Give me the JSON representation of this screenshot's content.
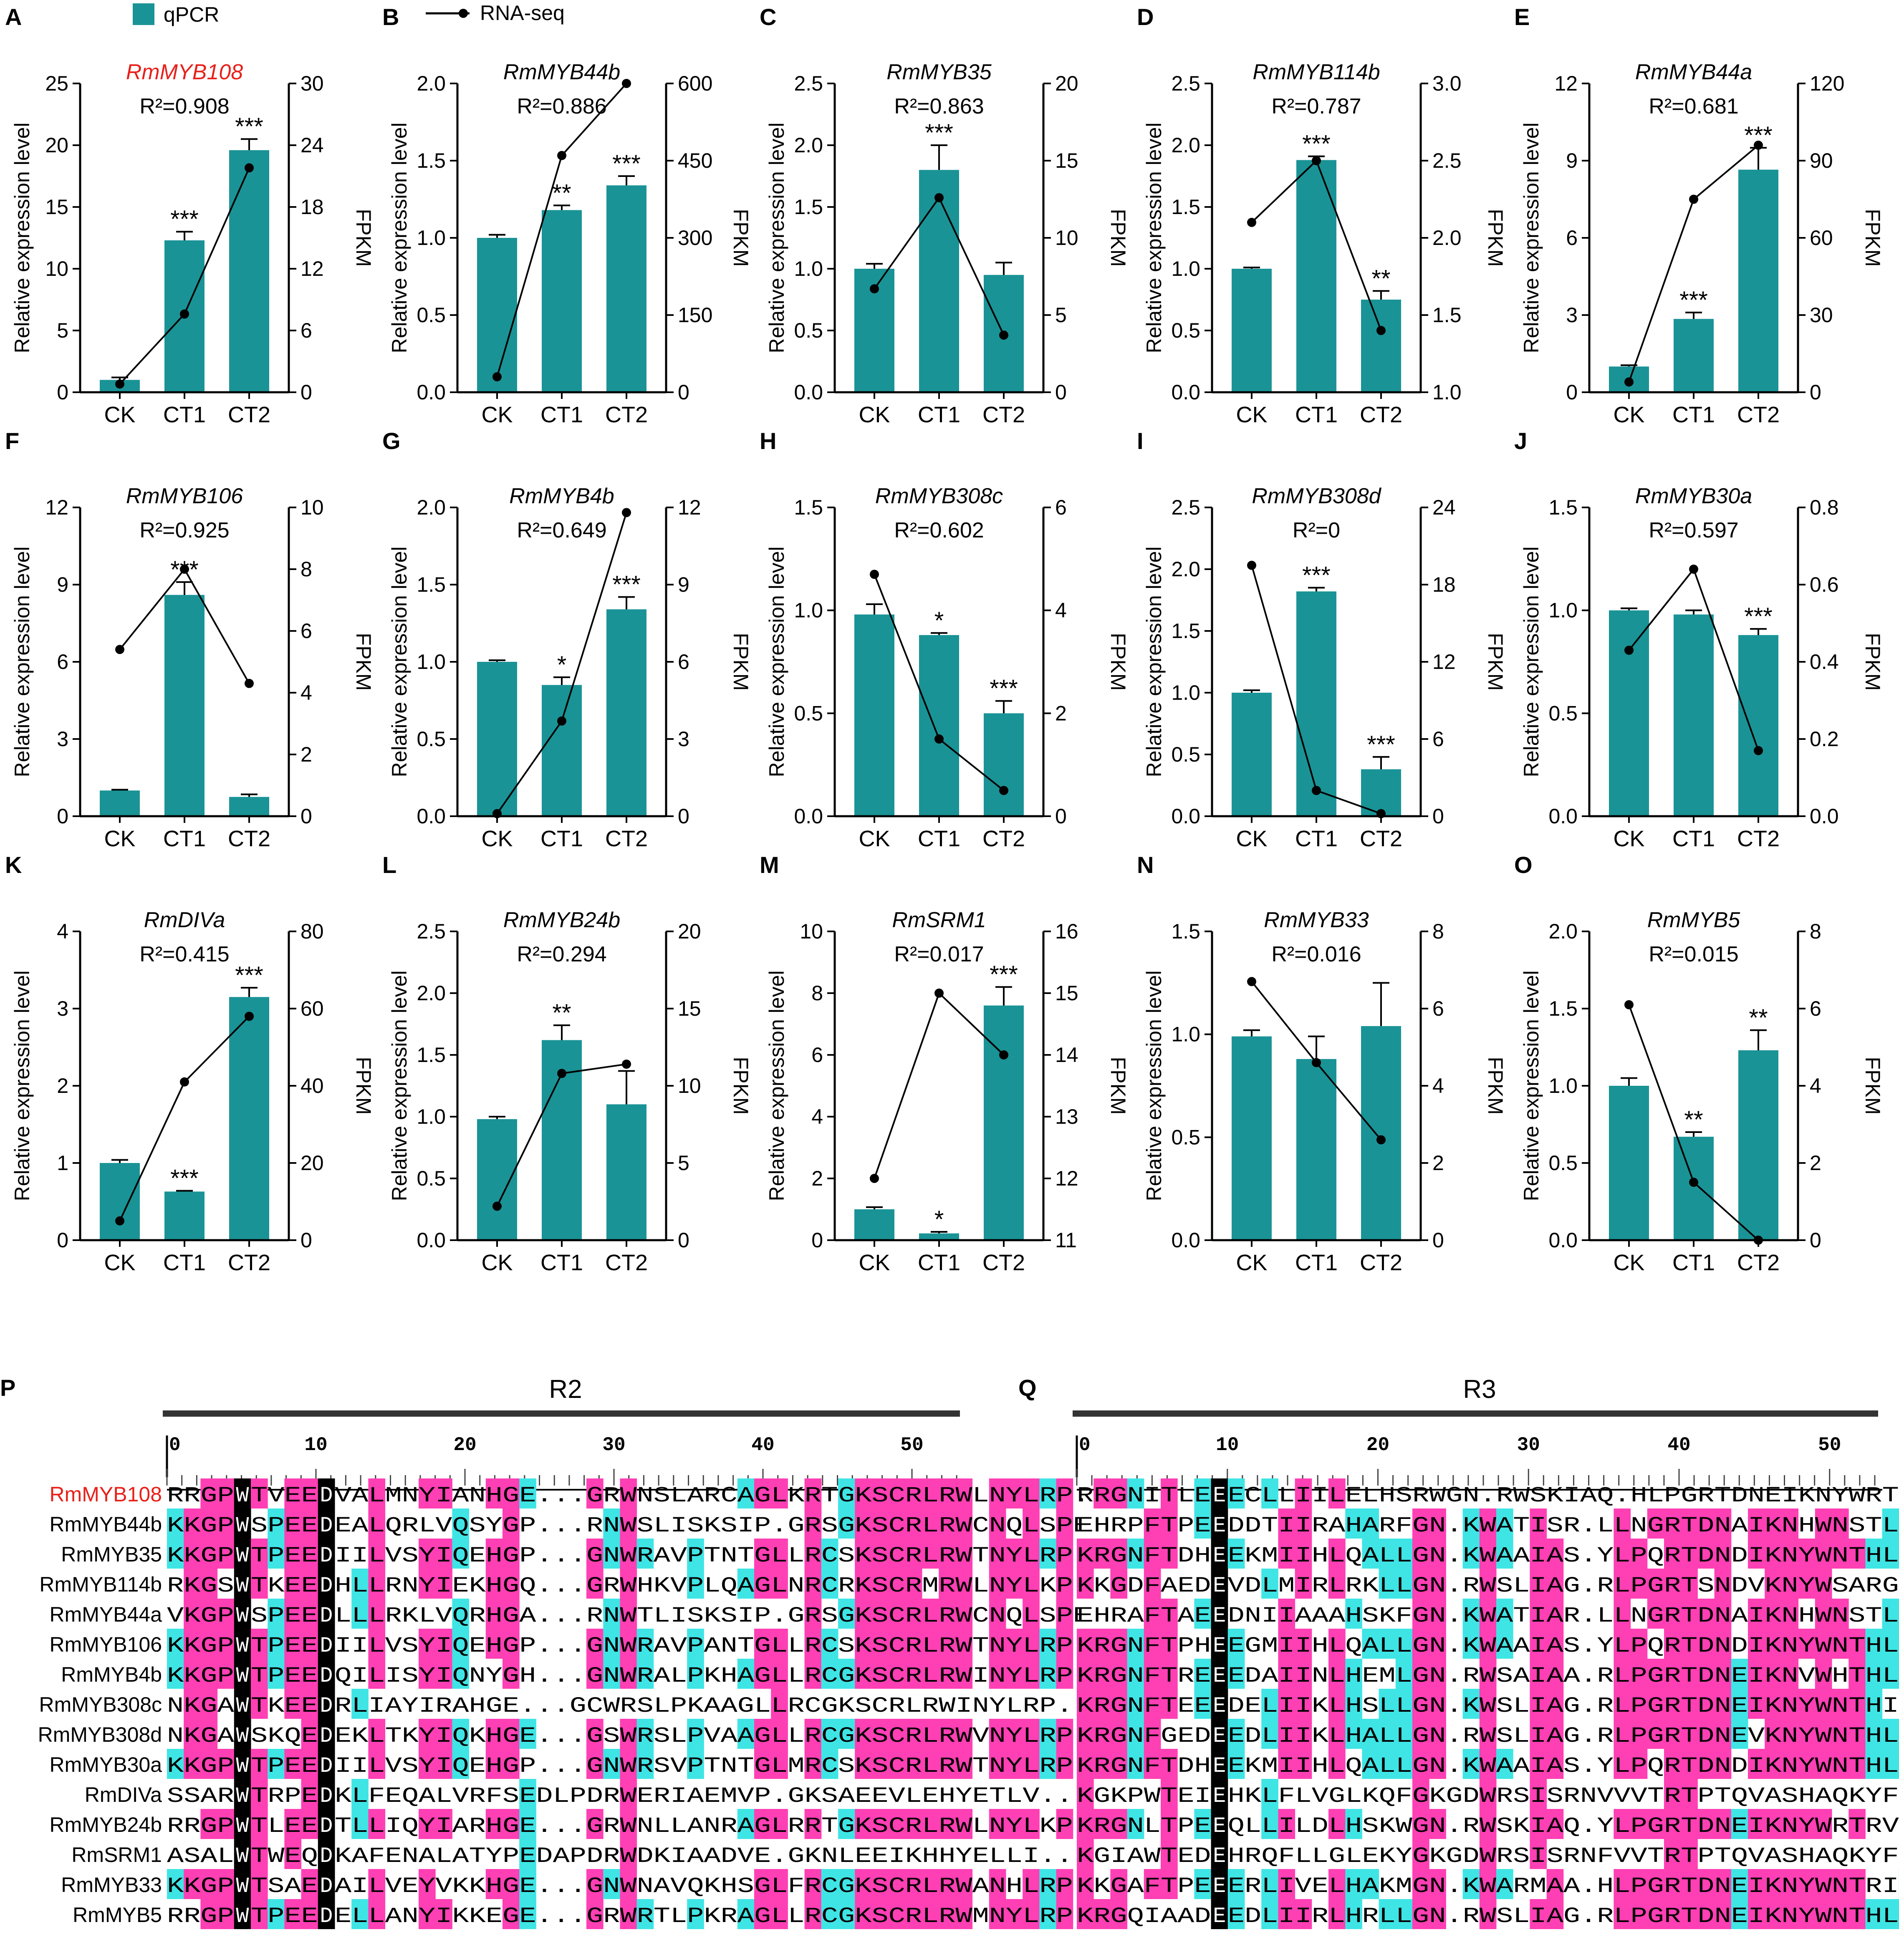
{
  "legend": {
    "qpcr_label": "qPCR",
    "rnaseq_label": "RNA-seq"
  },
  "axis_text": {
    "ylabel_left": "Relative expression level",
    "ylabel_right": "FPKM"
  },
  "chart_data": [
    {
      "type": "bar",
      "panel": "A",
      "title": "RmMYB108",
      "title_color": "#e8201a",
      "r2": "R²=0.908",
      "categories": [
        "CK",
        "CT1",
        "CT2"
      ],
      "bar_values": [
        1.0,
        12.3,
        19.6
      ],
      "bar_err": [
        0.2,
        0.7,
        0.9
      ],
      "sig": [
        "",
        "***",
        "***"
      ],
      "line_values": [
        0.8,
        7.6,
        21.8
      ],
      "ylim_left": [
        0,
        25
      ],
      "yticks_left": [
        0,
        5,
        10,
        15,
        20,
        25
      ],
      "ylim_right": [
        0,
        30
      ],
      "yticks_right": [
        0,
        6,
        12,
        18,
        24,
        30
      ]
    },
    {
      "type": "bar",
      "panel": "B",
      "title": "RmMYB44b",
      "r2": "R²=0.886",
      "categories": [
        "CK",
        "CT1",
        "CT2"
      ],
      "bar_values": [
        1.0,
        1.18,
        1.34
      ],
      "bar_err": [
        0.02,
        0.03,
        0.06
      ],
      "sig": [
        "",
        "**",
        "***"
      ],
      "line_values": [
        30,
        460,
        600
      ],
      "ylim_left": [
        0,
        2.0
      ],
      "yticks_left": [
        0.0,
        0.5,
        1.0,
        1.5,
        2.0
      ],
      "ylim_right": [
        0,
        600
      ],
      "yticks_right": [
        0,
        150,
        300,
        450,
        600
      ]
    },
    {
      "type": "bar",
      "panel": "C",
      "title": "RmMYB35",
      "r2": "R²=0.863",
      "categories": [
        "CK",
        "CT1",
        "CT2"
      ],
      "bar_values": [
        1.0,
        1.8,
        0.95
      ],
      "bar_err": [
        0.04,
        0.2,
        0.1
      ],
      "sig": [
        "",
        "***",
        ""
      ],
      "line_values": [
        6.7,
        12.6,
        3.7
      ],
      "ylim_left": [
        0,
        2.5
      ],
      "yticks_left": [
        0.0,
        0.5,
        1.0,
        1.5,
        2.0,
        2.5
      ],
      "ylim_right": [
        0,
        20
      ],
      "yticks_right": [
        0,
        5,
        10,
        15,
        20
      ]
    },
    {
      "type": "bar",
      "panel": "D",
      "title": "RmMYB114b",
      "r2": "R²=0.787",
      "categories": [
        "CK",
        "CT1",
        "CT2"
      ],
      "bar_values": [
        1.0,
        1.88,
        0.75
      ],
      "bar_err": [
        0.01,
        0.03,
        0.07
      ],
      "sig": [
        "",
        "***",
        "**"
      ],
      "line_values": [
        2.1,
        2.5,
        1.4
      ],
      "ylim_left": [
        0,
        2.5
      ],
      "yticks_left": [
        0.0,
        0.5,
        1.0,
        1.5,
        2.0,
        2.5
      ],
      "ylim_right": [
        1.0,
        3.0
      ],
      "yticks_right": [
        1.0,
        1.5,
        2.0,
        2.5,
        3.0
      ]
    },
    {
      "type": "bar",
      "panel": "E",
      "title": "RmMYB44a",
      "r2": "R²=0.681",
      "categories": [
        "CK",
        "CT1",
        "CT2"
      ],
      "bar_values": [
        1.0,
        2.85,
        8.65
      ],
      "bar_err": [
        0.05,
        0.25,
        0.85
      ],
      "sig": [
        "",
        "***",
        "***"
      ],
      "line_values": [
        4,
        75,
        96
      ],
      "ylim_left": [
        0,
        12
      ],
      "yticks_left": [
        0,
        3,
        6,
        9,
        12
      ],
      "ylim_right": [
        0,
        120
      ],
      "yticks_right": [
        0,
        30,
        60,
        90,
        120
      ]
    },
    {
      "type": "bar",
      "panel": "F",
      "title": "RmMYB106",
      "r2": "R²=0.925",
      "categories": [
        "CK",
        "CT1",
        "CT2"
      ],
      "bar_values": [
        1.0,
        8.6,
        0.75
      ],
      "bar_err": [
        0.03,
        0.5,
        0.1
      ],
      "sig": [
        "",
        "***",
        ""
      ],
      "line_values": [
        5.4,
        8.0,
        4.3
      ],
      "ylim_left": [
        0,
        12
      ],
      "yticks_left": [
        0,
        3,
        6,
        9,
        12
      ],
      "ylim_right": [
        0,
        10
      ],
      "yticks_right": [
        0,
        2,
        4,
        6,
        8,
        10
      ]
    },
    {
      "type": "bar",
      "panel": "G",
      "title": "RmMYB4b",
      "r2": "R²=0.649",
      "categories": [
        "CK",
        "CT1",
        "CT2"
      ],
      "bar_values": [
        1.0,
        0.85,
        1.34
      ],
      "bar_err": [
        0.01,
        0.05,
        0.08
      ],
      "sig": [
        "",
        "*",
        "***"
      ],
      "line_values": [
        0.1,
        3.7,
        11.8
      ],
      "ylim_left": [
        0,
        2.0
      ],
      "yticks_left": [
        0.0,
        0.5,
        1.0,
        1.5,
        2.0
      ],
      "ylim_right": [
        0,
        12
      ],
      "yticks_right": [
        0,
        3,
        6,
        9,
        12
      ]
    },
    {
      "type": "bar",
      "panel": "H",
      "title": "RmMYB308c",
      "r2": "R²=0.602",
      "categories": [
        "CK",
        "CT1",
        "CT2"
      ],
      "bar_values": [
        0.98,
        0.88,
        0.5
      ],
      "bar_err": [
        0.05,
        0.01,
        0.06
      ],
      "sig": [
        "",
        "*",
        "***"
      ],
      "line_values": [
        4.7,
        1.5,
        0.5
      ],
      "ylim_left": [
        0,
        1.5
      ],
      "yticks_left": [
        0.0,
        0.5,
        1.0,
        1.5
      ],
      "ylim_right": [
        0,
        6
      ],
      "yticks_right": [
        0,
        2,
        4,
        6
      ]
    },
    {
      "type": "bar",
      "panel": "I",
      "title": "RmMYB308d",
      "r2": "R²=0",
      "categories": [
        "CK",
        "CT1",
        "CT2"
      ],
      "bar_values": [
        1.0,
        1.82,
        0.38
      ],
      "bar_err": [
        0.02,
        0.03,
        0.1
      ],
      "sig": [
        "",
        "***",
        "***"
      ],
      "line_values": [
        19.5,
        2.0,
        0.2
      ],
      "ylim_left": [
        0,
        2.5
      ],
      "yticks_left": [
        0.0,
        0.5,
        1.0,
        1.5,
        2.0,
        2.5
      ],
      "ylim_right": [
        0,
        24
      ],
      "yticks_right": [
        0,
        6,
        12,
        18,
        24
      ]
    },
    {
      "type": "bar",
      "panel": "J",
      "title": "RmMYB30a",
      "r2": "R²=0.597",
      "categories": [
        "CK",
        "CT1",
        "CT2"
      ],
      "bar_values": [
        1.0,
        0.98,
        0.88
      ],
      "bar_err": [
        0.01,
        0.02,
        0.03
      ],
      "sig": [
        "",
        "",
        "***"
      ],
      "line_values": [
        0.43,
        0.64,
        0.17
      ],
      "ylim_left": [
        0,
        1.5
      ],
      "yticks_left": [
        0.0,
        0.5,
        1.0,
        1.5
      ],
      "ylim_right": [
        0,
        0.8
      ],
      "yticks_right": [
        0.0,
        0.2,
        0.4,
        0.6,
        0.8
      ]
    },
    {
      "type": "bar",
      "panel": "K",
      "title": "RmDIVa",
      "r2": "R²=0.415",
      "categories": [
        "CK",
        "CT1",
        "CT2"
      ],
      "bar_values": [
        1.0,
        0.63,
        3.15
      ],
      "bar_err": [
        0.04,
        0.01,
        0.12
      ],
      "sig": [
        "",
        "***",
        "***"
      ],
      "line_values": [
        5,
        41,
        58
      ],
      "ylim_left": [
        0,
        4
      ],
      "yticks_left": [
        0,
        1,
        2,
        3,
        4
      ],
      "ylim_right": [
        0,
        80
      ],
      "yticks_right": [
        0,
        20,
        40,
        60,
        80
      ]
    },
    {
      "type": "bar",
      "panel": "L",
      "title": "RmMYB24b",
      "r2": "R²=0.294",
      "categories": [
        "CK",
        "CT1",
        "CT2"
      ],
      "bar_values": [
        0.98,
        1.62,
        1.1
      ],
      "bar_err": [
        0.02,
        0.12,
        0.27
      ],
      "sig": [
        "",
        "**",
        ""
      ],
      "line_values": [
        2.2,
        10.8,
        11.4
      ],
      "ylim_left": [
        0,
        2.5
      ],
      "yticks_left": [
        0.0,
        0.5,
        1.0,
        1.5,
        2.0,
        2.5
      ],
      "ylim_right": [
        0,
        20
      ],
      "yticks_right": [
        0,
        5,
        10,
        15,
        20
      ]
    },
    {
      "type": "bar",
      "panel": "M",
      "title": "RmSRM1",
      "r2": "R²=0.017",
      "categories": [
        "CK",
        "CT1",
        "CT2"
      ],
      "bar_values": [
        1.0,
        0.22,
        7.6
      ],
      "bar_err": [
        0.07,
        0.05,
        0.6
      ],
      "sig": [
        "",
        "*",
        "***"
      ],
      "line_values": [
        12.0,
        15.0,
        14.0
      ],
      "ylim_left": [
        0,
        10
      ],
      "yticks_left": [
        0,
        2,
        4,
        6,
        8,
        10
      ],
      "ylim_right": [
        11,
        16
      ],
      "yticks_right": [
        11,
        12,
        13,
        14,
        15,
        16
      ]
    },
    {
      "type": "bar",
      "panel": "N",
      "title": "RmMYB33",
      "r2": "R²=0.016",
      "categories": [
        "CK",
        "CT1",
        "CT2"
      ],
      "bar_values": [
        0.99,
        0.88,
        1.04
      ],
      "bar_err": [
        0.03,
        0.11,
        0.21
      ],
      "sig": [
        "",
        "",
        ""
      ],
      "line_values": [
        6.7,
        4.6,
        2.6
      ],
      "ylim_left": [
        0,
        1.5
      ],
      "yticks_left": [
        0.0,
        0.5,
        1.0,
        1.5
      ],
      "ylim_right": [
        0,
        8
      ],
      "yticks_right": [
        0,
        2,
        4,
        6,
        8
      ]
    },
    {
      "type": "bar",
      "panel": "O",
      "title": "RmMYB5",
      "r2": "R²=0.015",
      "categories": [
        "CK",
        "CT1",
        "CT2"
      ],
      "bar_values": [
        1.0,
        0.67,
        1.23
      ],
      "bar_err": [
        0.05,
        0.03,
        0.13
      ],
      "sig": [
        "",
        "**",
        "**"
      ],
      "line_values": [
        6.1,
        1.5,
        0.0
      ],
      "ylim_left": [
        0,
        2.0
      ],
      "yticks_left": [
        0.0,
        0.5,
        1.0,
        1.5,
        2.0
      ],
      "ylim_right": [
        0,
        8
      ],
      "yticks_right": [
        0,
        2,
        4,
        6,
        8
      ]
    }
  ],
  "alignment": {
    "colors": {
      "identical": "#ff3fb4",
      "similar": "#3fe5e5",
      "conserved": "#000000"
    },
    "highlight_name": "RmMYB108",
    "names": [
      "RmMYB108",
      "RmMYB44b",
      "RmMYB35",
      "RmMYB114b",
      "RmMYB44a",
      "RmMYB106",
      "RmMYB4b",
      "RmMYB308c",
      "RmMYB308d",
      "RmMYB30a",
      "RmDIVa",
      "RmMYB24b",
      "RmSRM1",
      "RmMYB33",
      "RmMYB5"
    ],
    "panels": [
      {
        "panel": "P",
        "region": "R2",
        "ticks": [
          "0",
          "10",
          "20",
          "30",
          "40",
          "50"
        ],
        "seqs": [
          "RRGPWTVEEDVALMNYIANHGE...GRWNSLARCAGLKRTGKSCRLRWLNYLRP.",
          "KKGPWSPEEDEALQRLVQSYGP...RNWSLISKSIP.GRSGKSCRLRWCNQLSPE",
          "KKGPWTPEEDIILVSYIQEHGP...GNWRAVPTNTGLLRCSKSCRLRWTNYLRP.",
          "RKGSWTKEEDHLLRNYIEKHGQ...GRWHKVPLQAGLNRCRKSCRMRWLNYLKP.",
          "VKGPWSPEEDLLLRKLVQRHGA...RNWTLISKSIP.GRSGKSCRLRWCNQLSPE",
          "KKGPWTPEEDIILVSYIQEHGP...GNWRAVPANTGLLRCSKSCRLRWTNYLRP.",
          "KKGPWTPEEDQILISYIQNYGH...GNWRALPKHAGLLRCGKSCRLRWINYLRP.",
          "NKGAWTKEEDRLIAYIRAHGE...GCWRSLPKAAGLLRCGKSCRLRWINYLRP.",
          "NKGAWSKQEDEKLTKYIQKHGE...GSWRSLPVAAGLLRCGKSCRLRWVNYLRP.",
          "KKGPWTPEEDIILVSYIQEHGP...GNWRSVPTNTGLMRCSKSCRLRWTNYLRP.",
          "SSARWTRPEDKLFEQALVRFSEDLPDRWERIAEMVP.GKSAEEVLEHYETLV...",
          "RRGPWTLEEDTLLIQYIARHGE...GRWNLLANRAGLRRTGKSCRLRWLNYLKP.",
          "ASALWTWEQDKAFENALATYPEDAPDRWDKIAADVE.GKNLEEIKHHYELLI...",
          "KKGPWTSAEDAILVEYVKKHGE...GNWNAVQKHSGLFRCGKSCRLRWANHLRP.",
          "RRGPWTPEEDELLANYIKKEGE...GRWRTLPKRAGLLRCGKSCRLRWMNYLRP."
        ]
      },
      {
        "panel": "Q",
        "region": "R3",
        "ticks": [
          "0",
          "10",
          "20",
          "30",
          "40",
          "50"
        ],
        "seqs": [
          "RRGNITLEEECLLIILELHSRWGN.RWSKIAQ.HLPGRTDNEIKNYWRTRVQKHA",
          "EHRPFTPEEDDTIIRAHARFGN.KWATISR.LLNGRTDNAIKNHWNSTLKRKF",
          "KRGNFTDHEEKMIIHLQALLGN.KWAAIAS.YLPQRTDNDIKNYWNTHLKKKL",
          "KKGDFAEDEVDLMIRLRKLLGN.RWSLIAG.RLPGRTSNDVKNYWSARGRRNI",
          "EHRAFTAEEDNIIAAAHSKFGN.KWATIAR.LLNGRTDNAIKNHWNSTLKRKY",
          "KRGNFTPHEEGMIIHLQALLGN.KWAAIAS.YLPQRTDNDIKNYWNTHLKKKL",
          "KRGNFTREEEDAIINLHEMLGN.RWSAIAA.RLPGRTDNEIKNVWHTHLKKRL",
          "KRGNFTEEEDELIIKLHSLLGN.KWSLIAG.RLPGRTDNEIKNYWNTHIRRKL",
          "KRGNFGEDEEDLIIKLHALLGN.RWSLIAG.RLPGRTDNEVKNYWNTHLRRKL",
          "KRGNFTDHEEKMIIHLQALLGN.KWAAIAS.YLPQRTDNDIKNYWNTHLKKKL",
          "KGKPWTEIEHKLFLVGLKQFGKGDWRSISRNVVVTRTPTQVASHAQKYFLR..",
          "KRGNLTPEEQLLILDLHSKWGN.RWSKIAQ.YLPGRTDNEIKNYWRTRVQKQA",
          "KGIAWTEDEHRQFLLGLEKYGKGDWRSISRNFVVTRTPTQVASHAQKYFIR..",
          "KKGAFTPEEERLIVELHAKMGN.KWARMAA.HLPGRTDNEIKNYWNTRIKRRQ",
          "KRGQIAADEEDLIIRLHRLLGN.RWSLIAG.RLPGRTDNEIKNYWNTHLSKKL"
        ]
      }
    ]
  }
}
